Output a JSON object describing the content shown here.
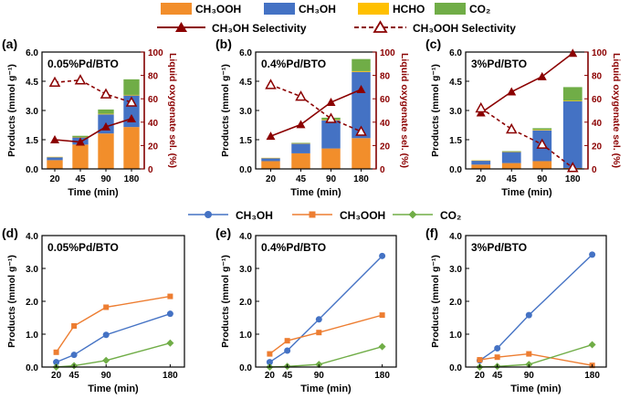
{
  "colors": {
    "ch3ooh": "#F28E2B",
    "ch3oh": "#4472C4",
    "hcho": "#FFC000",
    "co2": "#70AD47",
    "sel": "#8B0000",
    "line_ch3oh": "#4472C4",
    "line_ch3ooh": "#ED7D31",
    "line_co2": "#70AD47"
  },
  "legend_top": {
    "items": [
      {
        "key": "ch3ooh",
        "label": "CH₃OOH"
      },
      {
        "key": "ch3oh",
        "label": "CH₃OH"
      },
      {
        "key": "hcho",
        "label": "HCHO"
      },
      {
        "key": "co2",
        "label": "CO₂"
      }
    ],
    "sel_items": [
      {
        "key": "ch3oh_sel",
        "label": "CH₃OH Selectivity",
        "style": "solid"
      },
      {
        "key": "ch3ooh_sel",
        "label": "CH₃OOH Selectivity",
        "style": "dashed"
      }
    ]
  },
  "legend_bottom": {
    "items": [
      {
        "key": "ch3oh",
        "label": "CH₃OH",
        "marker": "circle"
      },
      {
        "key": "ch3ooh",
        "label": "CH₃OOH",
        "marker": "square"
      },
      {
        "key": "co2",
        "label": "CO₂",
        "marker": "diamond"
      }
    ]
  },
  "chart_data": [
    {
      "panel": "(a)",
      "title": "0.05%Pd/BTO",
      "type": "bar",
      "categories": [
        "20",
        "45",
        "90",
        "180"
      ],
      "xlabel": "Time (min)",
      "ylabel": "Products (mmol g⁻¹)",
      "ylabel2": "Liquid oxygenate sel. (%)",
      "ylim": [
        0,
        6.0
      ],
      "yticks": [
        "0.0",
        "1.5",
        "3.0",
        "4.5",
        "6.0"
      ],
      "y2lim": [
        0,
        100
      ],
      "y2ticks": [
        "0",
        "20",
        "40",
        "60",
        "80",
        "100"
      ],
      "series": [
        {
          "name": "CH₃OOH",
          "values": [
            0.45,
            1.25,
            1.82,
            2.15
          ]
        },
        {
          "name": "CH₃OH",
          "values": [
            0.15,
            0.37,
            0.98,
            1.62
          ]
        },
        {
          "name": "HCHO",
          "values": [
            0.02,
            0.02,
            0.03,
            0.03
          ]
        },
        {
          "name": "CO₂",
          "values": [
            0.0,
            0.06,
            0.22,
            0.8
          ]
        }
      ],
      "selectivity": {
        "CH3OH": [
          25,
          23,
          36,
          43
        ],
        "CH3OOH": [
          74,
          76,
          64,
          57
        ]
      }
    },
    {
      "panel": "(b)",
      "title": "0.4%Pd/BTO",
      "type": "bar",
      "categories": [
        "20",
        "45",
        "90",
        "180"
      ],
      "xlabel": "Time (min)",
      "ylabel": "Products (mmol g⁻¹)",
      "ylabel2": "Liquid oxygenate sel. (%)",
      "ylim": [
        0,
        6.0
      ],
      "yticks": [
        "0.0",
        "1.5",
        "3.0",
        "4.5",
        "6.0"
      ],
      "y2lim": [
        0,
        100
      ],
      "y2ticks": [
        "0",
        "20",
        "40",
        "60",
        "80",
        "100"
      ],
      "series": [
        {
          "name": "CH₃OOH",
          "values": [
            0.4,
            0.8,
            1.05,
            1.58
          ]
        },
        {
          "name": "CH₃OH",
          "values": [
            0.15,
            0.5,
            1.45,
            3.4
          ]
        },
        {
          "name": "HCHO",
          "values": [
            0.02,
            0.02,
            0.03,
            0.04
          ]
        },
        {
          "name": "CO₂",
          "values": [
            0.0,
            0.02,
            0.1,
            0.62
          ]
        }
      ],
      "selectivity": {
        "CH3OH": [
          28,
          38,
          57,
          68
        ],
        "CH3OOH": [
          72,
          62,
          43,
          32
        ]
      }
    },
    {
      "panel": "(c)",
      "title": "3%Pd/BTO",
      "type": "bar",
      "categories": [
        "20",
        "45",
        "90",
        "180"
      ],
      "xlabel": "Time (min)",
      "ylabel": "Products (mmol g⁻¹)",
      "ylabel2": "Liquid oxygenate sel. (%)",
      "ylim": [
        0,
        6.0
      ],
      "yticks": [
        "0.0",
        "1.5",
        "3.0",
        "4.5",
        "6.0"
      ],
      "y2lim": [
        0,
        100
      ],
      "y2ticks": [
        "0",
        "20",
        "40",
        "60",
        "80",
        "100"
      ],
      "series": [
        {
          "name": "CH₃OOH",
          "values": [
            0.22,
            0.3,
            0.4,
            0.05
          ]
        },
        {
          "name": "CH₃OH",
          "values": [
            0.2,
            0.57,
            1.58,
            3.42
          ]
        },
        {
          "name": "HCHO",
          "values": [
            0.02,
            0.02,
            0.03,
            0.03
          ]
        },
        {
          "name": "CO₂",
          "values": [
            0.0,
            0.02,
            0.08,
            0.7
          ]
        }
      ],
      "selectivity": {
        "CH3OH": [
          48,
          66,
          79,
          99
        ],
        "CH3OOH": [
          52,
          34,
          21,
          1
        ]
      }
    },
    {
      "panel": "(d)",
      "title": "0.05%Pd/BTO",
      "type": "line",
      "x": [
        20,
        45,
        90,
        180
      ],
      "xticks": [
        "20",
        "45",
        "90",
        "180"
      ],
      "xlabel": "Time (min)",
      "ylabel": "Products (mmol g⁻¹)",
      "xlim": [
        0,
        200
      ],
      "ylim": [
        0,
        4.0
      ],
      "yticks": [
        "0.0",
        "1.0",
        "2.0",
        "3.0",
        "4.0"
      ],
      "series": [
        {
          "name": "CH₃OH",
          "values": [
            0.15,
            0.37,
            0.98,
            1.62
          ]
        },
        {
          "name": "CH₃OOH",
          "values": [
            0.45,
            1.25,
            1.82,
            2.15
          ]
        },
        {
          "name": "CO₂",
          "values": [
            0.0,
            0.04,
            0.2,
            0.73
          ]
        }
      ]
    },
    {
      "panel": "(e)",
      "title": "0.4%Pd/BTO",
      "type": "line",
      "x": [
        20,
        45,
        90,
        180
      ],
      "xticks": [
        "20",
        "45",
        "90",
        "180"
      ],
      "xlabel": "Time (min)",
      "ylabel": "Products (mmol g⁻¹)",
      "xlim": [
        0,
        200
      ],
      "ylim": [
        0,
        4.0
      ],
      "yticks": [
        "0.0",
        "1.0",
        "2.0",
        "3.0",
        "4.0"
      ],
      "series": [
        {
          "name": "CH₃OH",
          "values": [
            0.15,
            0.5,
            1.45,
            3.38
          ]
        },
        {
          "name": "CH₃OOH",
          "values": [
            0.4,
            0.8,
            1.05,
            1.58
          ]
        },
        {
          "name": "CO₂",
          "values": [
            0.0,
            0.02,
            0.08,
            0.62
          ]
        }
      ]
    },
    {
      "panel": "(f)",
      "title": "3%Pd/BTO",
      "type": "line",
      "x": [
        20,
        45,
        90,
        180
      ],
      "xticks": [
        "20",
        "45",
        "90",
        "180"
      ],
      "xlabel": "Time (min)",
      "ylabel": "Products (mmol g⁻¹)",
      "xlim": [
        0,
        200
      ],
      "ylim": [
        0,
        4.0
      ],
      "yticks": [
        "0.0",
        "1.0",
        "2.0",
        "3.0",
        "4.0"
      ],
      "series": [
        {
          "name": "CH₃OH",
          "values": [
            0.2,
            0.57,
            1.58,
            3.42
          ]
        },
        {
          "name": "CH₃OOH",
          "values": [
            0.22,
            0.3,
            0.4,
            0.05
          ]
        },
        {
          "name": "CO₂",
          "values": [
            0.0,
            0.02,
            0.08,
            0.68
          ]
        }
      ]
    }
  ]
}
